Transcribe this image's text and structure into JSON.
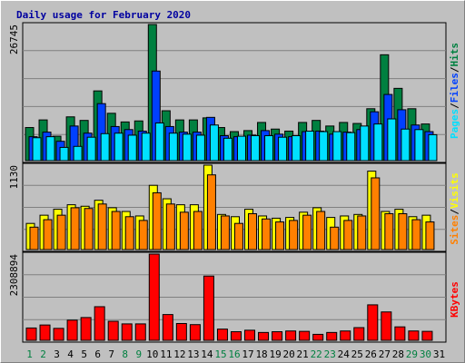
{
  "title": "Daily usage for February 2020",
  "colors": {
    "background": "#c0c0c0",
    "hits": "#008040",
    "files": "#0040ff",
    "pages": "#00e0ff",
    "visits": "#ffff00",
    "sites": "#ff8000",
    "kbytes": "#ff0000",
    "weekday_label": "#000000",
    "weekend_label": "#008040"
  },
  "chart_data": [
    {
      "type": "bar",
      "name_label": "Pages / Files / Hits",
      "right_label_parts": [
        "Pages",
        "Files",
        "Hits"
      ],
      "ymax_label": "26745",
      "ylim": [
        0,
        26745
      ],
      "grid": true,
      "categories": [
        "1",
        "2",
        "3",
        "4",
        "5",
        "6",
        "7",
        "8",
        "9",
        "10",
        "11",
        "12",
        "13",
        "14",
        "15",
        "16",
        "17",
        "18",
        "19",
        "20",
        "21",
        "22",
        "23",
        "24",
        "25",
        "26",
        "27",
        "28",
        "29",
        "30",
        "31"
      ],
      "series": [
        {
          "name": "Hits",
          "values": [
            6500,
            8000,
            4800,
            8600,
            7900,
            13700,
            9300,
            7600,
            7800,
            26745,
            9800,
            8000,
            8000,
            8400,
            6500,
            5700,
            5900,
            7500,
            6200,
            5800,
            7500,
            7900,
            6800,
            7500,
            7300,
            10200,
            20800,
            14200,
            10200,
            7200,
            0
          ]
        },
        {
          "name": "Files",
          "values": [
            4700,
            5600,
            3800,
            6800,
            5400,
            11200,
            6700,
            6100,
            5800,
            17600,
            6700,
            5600,
            5600,
            8500,
            4900,
            4700,
            5000,
            5900,
            5200,
            4700,
            5700,
            5800,
            5200,
            5600,
            6100,
            9600,
            13000,
            10000,
            7000,
            5700,
            0
          ]
        },
        {
          "name": "Pages",
          "values": [
            4500,
            4700,
            2600,
            2800,
            4600,
            5300,
            5400,
            5000,
            5400,
            7400,
            5400,
            5200,
            5000,
            7000,
            4400,
            4800,
            4900,
            4900,
            4600,
            4900,
            5800,
            5700,
            5700,
            5500,
            6800,
            7200,
            8200,
            6200,
            6100,
            5100,
            0
          ]
        }
      ]
    },
    {
      "type": "bar",
      "name_label": "Sites / Visits",
      "right_label_parts": [
        "Sites",
        "Visits"
      ],
      "ymax_label": "1130",
      "ylim": [
        0,
        1130
      ],
      "grid": true,
      "categories": [
        "1",
        "2",
        "3",
        "4",
        "5",
        "6",
        "7",
        "8",
        "9",
        "10",
        "11",
        "12",
        "13",
        "14",
        "15",
        "16",
        "17",
        "18",
        "19",
        "20",
        "21",
        "22",
        "23",
        "24",
        "25",
        "26",
        "27",
        "28",
        "29",
        "30",
        "31"
      ],
      "series": [
        {
          "name": "Visits",
          "values": [
            350,
            460,
            540,
            600,
            580,
            660,
            560,
            510,
            450,
            860,
            680,
            600,
            600,
            1130,
            470,
            440,
            540,
            450,
            420,
            430,
            500,
            560,
            430,
            450,
            470,
            1050,
            510,
            540,
            440,
            460,
            0
          ]
        },
        {
          "name": "Sites",
          "values": [
            300,
            400,
            460,
            560,
            550,
            610,
            510,
            440,
            390,
            760,
            610,
            500,
            510,
            1000,
            450,
            350,
            480,
            410,
            370,
            390,
            460,
            510,
            300,
            390,
            450,
            960,
            480,
            480,
            400,
            370,
            0
          ]
        }
      ]
    },
    {
      "type": "bar",
      "name_label": "KBytes",
      "right_label_parts": [
        "KBytes"
      ],
      "ymax_label": "2308894",
      "ylim": [
        0,
        2308894
      ],
      "grid": true,
      "categories": [
        "1",
        "2",
        "3",
        "4",
        "5",
        "6",
        "7",
        "8",
        "9",
        "10",
        "11",
        "12",
        "13",
        "14",
        "15",
        "16",
        "17",
        "18",
        "19",
        "20",
        "21",
        "22",
        "23",
        "24",
        "25",
        "26",
        "27",
        "28",
        "29",
        "30",
        "31"
      ],
      "series": [
        {
          "name": "KBytes",
          "values": [
            330000,
            410000,
            320000,
            540000,
            610000,
            900000,
            510000,
            440000,
            440000,
            2308894,
            690000,
            450000,
            420000,
            1720000,
            300000,
            230000,
            270000,
            210000,
            230000,
            250000,
            240000,
            160000,
            210000,
            250000,
            340000,
            950000,
            760000,
            360000,
            250000,
            240000,
            0
          ]
        }
      ]
    }
  ],
  "x_axis": {
    "labels": [
      "1",
      "2",
      "3",
      "4",
      "5",
      "6",
      "7",
      "8",
      "9",
      "10",
      "11",
      "12",
      "13",
      "14",
      "15",
      "16",
      "17",
      "18",
      "19",
      "20",
      "21",
      "22",
      "23",
      "24",
      "25",
      "26",
      "27",
      "28",
      "29",
      "30",
      "31"
    ],
    "weekend": [
      true,
      true,
      false,
      false,
      false,
      false,
      false,
      true,
      true,
      false,
      false,
      false,
      false,
      false,
      true,
      true,
      false,
      false,
      false,
      false,
      false,
      true,
      true,
      false,
      false,
      false,
      false,
      false,
      true,
      true,
      false
    ]
  }
}
